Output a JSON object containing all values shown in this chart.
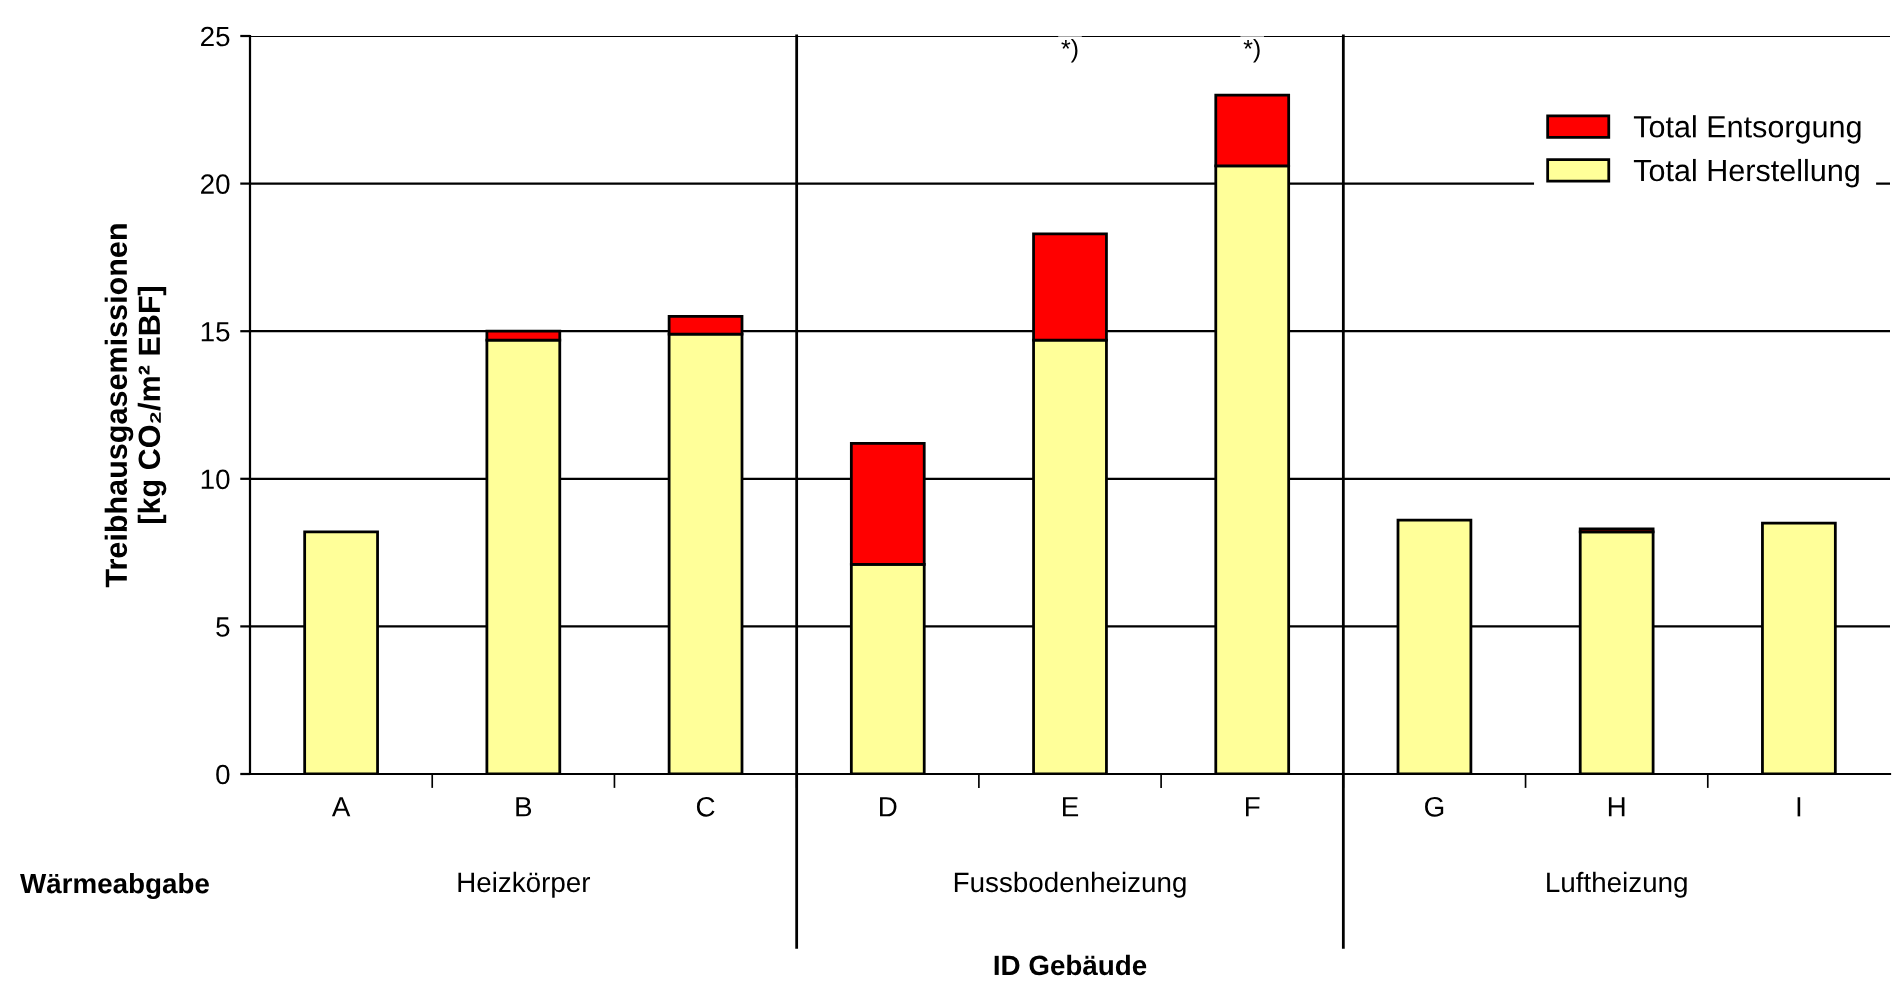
{
  "chart_data": {
    "type": "bar",
    "stacked": true,
    "categories": [
      "A",
      "B",
      "C",
      "D",
      "E",
      "F",
      "G",
      "H",
      "I"
    ],
    "series": [
      {
        "name": "Total Herstellung",
        "color": "#ffff99",
        "values": [
          8.2,
          14.7,
          14.9,
          7.1,
          14.7,
          20.6,
          8.6,
          8.2,
          8.5
        ]
      },
      {
        "name": "Total Entsorgung",
        "color": "#ff0000",
        "values": [
          null,
          0.3,
          0.6,
          4.1,
          3.6,
          2.4,
          null,
          0.1,
          null
        ]
      }
    ],
    "ylim": [
      0,
      25
    ],
    "yticks": [
      0,
      5,
      10,
      15,
      20,
      25
    ],
    "grid": "y",
    "legend": "top right",
    "ylabel": "Treibhausgasemissionen\n[kg CO₂/m² EBF]",
    "xlabel": "ID Gebäude",
    "annotations": [
      {
        "text": "*)",
        "x": "E",
        "y": 24.5
      },
      {
        "text": "*)",
        "x": "F",
        "y": 24.5
      },
      "Wärmeabgabe",
      "Heizkörper",
      "Fussbodenheizung",
      "Luftheizung"
    ]
  }
}
